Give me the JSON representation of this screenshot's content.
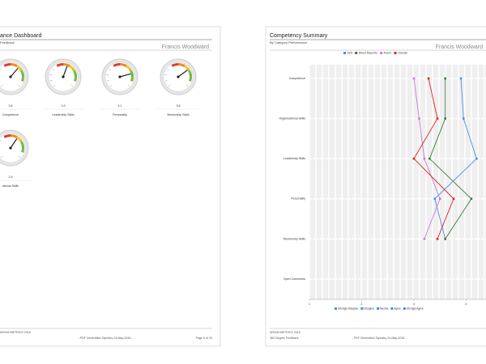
{
  "left_page": {
    "title": "ance Dashboard",
    "subtitle": "Feedback",
    "person": "Francis Woodward",
    "gauge_range": [
      1,
      5
    ],
    "gauges": [
      {
        "label": "Competence",
        "value": 3.6
      },
      {
        "label": "Leadership Skills",
        "value": 3.3
      },
      {
        "label": "Personality",
        "value": 4.1
      },
      {
        "label": "Mentorship Skills",
        "value": 3.8
      },
      {
        "label": "ational Skills",
        "value": 3.5
      }
    ],
    "footer": {
      "left": "WSGM METRICS 2016",
      "center": "- PDF Generation Tapestry 24-May-2016 -",
      "right": "Page 5 of 20"
    }
  },
  "right_page": {
    "title": "Competency Summary",
    "subtitle": "By Category Performance",
    "person": "Francis Woodward",
    "chart": {
      "type": "line",
      "categories": [
        "Competence",
        "Organisational Skills",
        "Leadership Skills",
        "Personality",
        "Mentorship Skills",
        "Open Comments"
      ],
      "series": [
        {
          "name": "Self",
          "color": "#4a8fe8",
          "values": [
            3.9,
            3.95,
            4.2,
            3.4,
            3.6,
            null
          ]
        },
        {
          "name": "Direct Reports",
          "color": "#3a7a3a",
          "values": [
            3.6,
            3.6,
            3.3,
            4.1,
            3.6,
            null
          ]
        },
        {
          "name": "Peers",
          "color": "#c77ad6",
          "values": [
            3.0,
            3.1,
            3.2,
            3.5,
            3.2,
            null
          ]
        },
        {
          "name": "Overall",
          "color": "#e02020",
          "values": [
            3.28,
            3.45,
            3.0,
            3.76,
            3.45,
            null
          ]
        }
      ],
      "xlim": [
        1,
        5
      ],
      "xticks": [
        1,
        2,
        3,
        4
      ],
      "scale_legend": [
        "Strongly Disagree",
        "Disagree",
        "Neutral",
        "Agree",
        "Strongly Agree"
      ]
    },
    "footer": {
      "left": "WSGM METRICS 2016",
      "left2": "360 Degree Feedback",
      "center": "- PDF Generation Tapestry 24-May-2016 -"
    }
  }
}
